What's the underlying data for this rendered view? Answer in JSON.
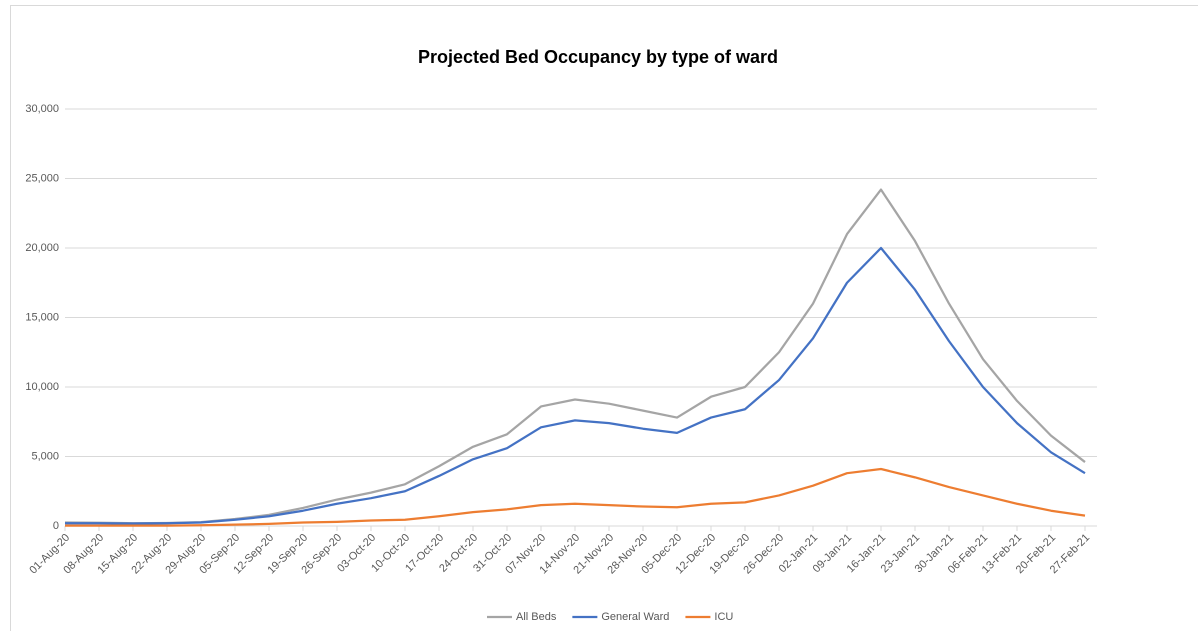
{
  "chart_data": {
    "type": "line",
    "title": "Projected Bed Occupancy by type of ward",
    "categories": [
      "01-Aug-20",
      "08-Aug-20",
      "15-Aug-20",
      "22-Aug-20",
      "29-Aug-20",
      "05-Sep-20",
      "12-Sep-20",
      "19-Sep-20",
      "26-Sep-20",
      "03-Oct-20",
      "10-Oct-20",
      "17-Oct-20",
      "24-Oct-20",
      "31-Oct-20",
      "07-Nov-20",
      "14-Nov-20",
      "21-Nov-20",
      "28-Nov-20",
      "05-Dec-20",
      "12-Dec-20",
      "19-Dec-20",
      "26-Dec-20",
      "02-Jan-21",
      "09-Jan-21",
      "16-Jan-21",
      "23-Jan-21",
      "30-Jan-21",
      "06-Feb-21",
      "13-Feb-21",
      "20-Feb-21",
      "27-Feb-21"
    ],
    "series": [
      {
        "name": "All Beds",
        "color": "#a5a5a5",
        "values": [
          250,
          230,
          200,
          220,
          280,
          500,
          800,
          1300,
          1900,
          2400,
          3000,
          4300,
          5700,
          6600,
          8600,
          9100,
          8800,
          8300,
          7800,
          9300,
          10000,
          12500,
          16000,
          21000,
          24200,
          20500,
          16000,
          12000,
          9000,
          6500,
          4600
        ]
      },
      {
        "name": "General Ward",
        "color": "#4472c4",
        "values": [
          200,
          200,
          180,
          200,
          250,
          450,
          700,
          1100,
          1600,
          2000,
          2500,
          3600,
          4800,
          5600,
          7100,
          7600,
          7400,
          7000,
          6700,
          7800,
          8400,
          10500,
          13500,
          17500,
          20000,
          17000,
          13300,
          10000,
          7400,
          5300,
          3800
        ]
      },
      {
        "name": "ICU",
        "color": "#ed7d31",
        "values": [
          30,
          30,
          30,
          30,
          50,
          100,
          150,
          250,
          300,
          400,
          450,
          700,
          1000,
          1200,
          1500,
          1600,
          1500,
          1400,
          1350,
          1600,
          1700,
          2200,
          2900,
          3800,
          4100,
          3500,
          2800,
          2200,
          1600,
          1100,
          750
        ]
      }
    ],
    "ylim": [
      0,
      30000
    ],
    "yticks": [
      0,
      {
        "value": 5000,
        "label": "5,000"
      },
      {
        "value": 10000,
        "label": "10,000"
      },
      {
        "value": 15000,
        "label": "15,000"
      },
      {
        "value": 20000,
        "label": "20,000"
      },
      {
        "value": 25000,
        "label": "25,000"
      },
      {
        "value": 30000,
        "label": "30,000"
      }
    ],
    "grid": true,
    "legend": "bottom"
  }
}
